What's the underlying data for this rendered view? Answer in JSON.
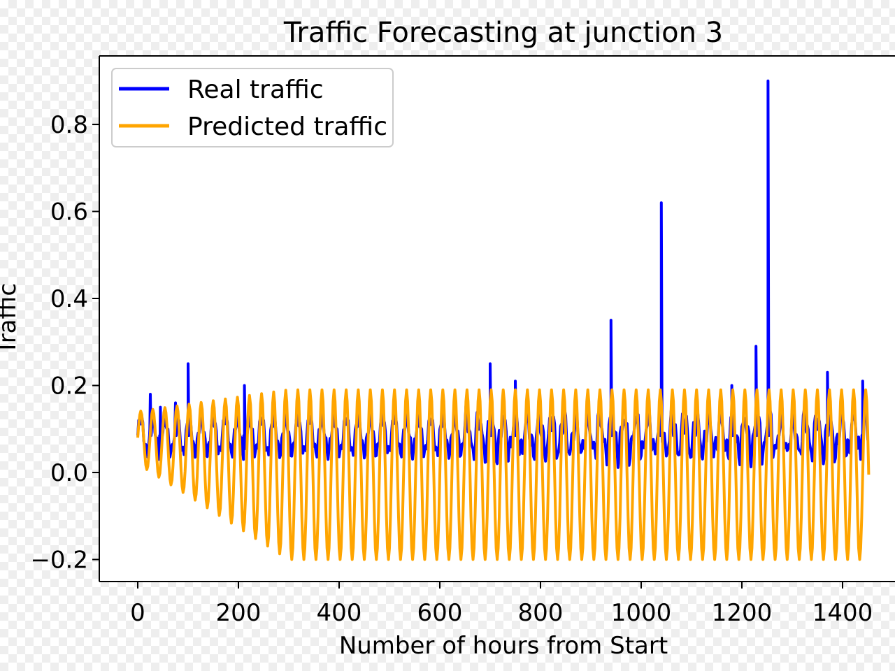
{
  "chart_data": {
    "type": "line",
    "title": "Traffic Forecasting at junction 3",
    "xlabel": "Number of hours from Start",
    "ylabel": "Traffic",
    "xlim": [
      -80,
      1460
    ],
    "ylim": [
      -0.25,
      0.95
    ],
    "xticks": [
      0,
      200,
      400,
      600,
      800,
      1000,
      1200,
      1400
    ],
    "xtick_labels": [
      "0",
      "200",
      "400",
      "600",
      "800",
      "1000",
      "1200",
      "1400"
    ],
    "yticks": [
      -0.2,
      0.0,
      0.2,
      0.4,
      0.6,
      0.8
    ],
    "ytick_labels": [
      "−0.2",
      "0.0",
      "0.2",
      "0.4",
      "0.6",
      "0.8"
    ],
    "grid": false,
    "legend_position": "top-left",
    "series": [
      {
        "name": "Real traffic",
        "color": "#0000ff",
        "baseline": {
          "center": 0.085,
          "amplitude": 0.04,
          "period": 24
        },
        "spikes": [
          {
            "x": 25,
            "y": 0.18
          },
          {
            "x": 45,
            "y": 0.15
          },
          {
            "x": 75,
            "y": 0.16
          },
          {
            "x": 100,
            "y": 0.25
          },
          {
            "x": 212,
            "y": 0.2
          },
          {
            "x": 700,
            "y": 0.25
          },
          {
            "x": 750,
            "y": 0.21
          },
          {
            "x": 940,
            "y": 0.35
          },
          {
            "x": 1040,
            "y": 0.62
          },
          {
            "x": 1180,
            "y": 0.2
          },
          {
            "x": 1228,
            "y": 0.29
          },
          {
            "x": 1252,
            "y": 0.9
          },
          {
            "x": 1370,
            "y": 0.23
          },
          {
            "x": 1440,
            "y": 0.21
          }
        ],
        "x_range": [
          0,
          1452
        ]
      },
      {
        "name": "Predicted traffic",
        "color": "#ffa500",
        "oscillation": {
          "period": 24,
          "start": {
            "high": 0.14,
            "low": 0.02
          },
          "steady": {
            "high": 0.19,
            "low": -0.2
          },
          "steady_from_x": 300
        },
        "x_range": [
          0,
          1452
        ]
      }
    ]
  }
}
